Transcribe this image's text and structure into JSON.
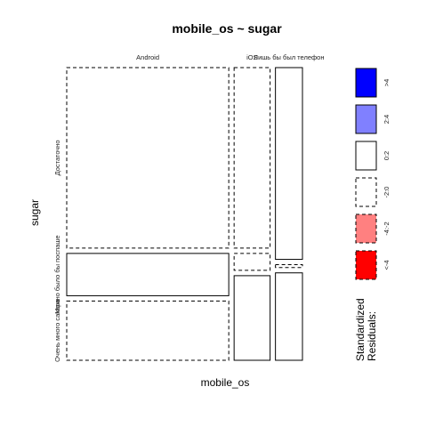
{
  "chart_data": {
    "type": "mosaic",
    "title": "mobile_os ~ sugar",
    "xlabel": "mobile_os",
    "ylabel": "sugar",
    "x_categories": [
      "Android",
      "iOS",
      "Лишь бы был телефон"
    ],
    "y_categories": [
      "Достаточно",
      "Можно было бы поспаше",
      "Очень много сахара"
    ],
    "column_shares": [
      0.72,
      0.16,
      0.12
    ],
    "cell_shares": [
      {
        "column": "Android",
        "shares": [
          0.64,
          0.15,
          0.21
        ]
      },
      {
        "column": "iOS",
        "shares": [
          0.64,
          0.06,
          0.3
        ]
      },
      {
        "column": "Лишь бы был телефон",
        "shares": [
          0.68,
          0.01,
          0.31
        ]
      }
    ],
    "cell_residual_class": [
      {
        "column": "Android",
        "classes": [
          "-2:0",
          "0:2",
          "-2:0"
        ]
      },
      {
        "column": "iOS",
        "classes": [
          "-2:0",
          "-2:0",
          "0:2"
        ]
      },
      {
        "column": "Лишь бы был телефон",
        "classes": [
          "0:2",
          "-2:0",
          "0:2"
        ]
      }
    ],
    "legend": {
      "title_line1": "Standardized",
      "title_line2": "Residuals:",
      "position": "right",
      "entries": [
        {
          "label": ">4",
          "fill": "#0000ff",
          "dashed": false
        },
        {
          "label": "2:4",
          "fill": "#8080ff",
          "dashed": false
        },
        {
          "label": "0:2",
          "fill": "#ffffff",
          "dashed": false
        },
        {
          "label": "-2:0",
          "fill": "#ffffff",
          "dashed": true
        },
        {
          "label": "-4:-2",
          "fill": "#ff8080",
          "dashed": true
        },
        {
          "label": "<-4",
          "fill": "#ff0000",
          "dashed": true
        }
      ]
    }
  }
}
